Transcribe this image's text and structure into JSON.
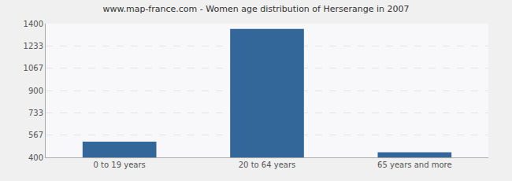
{
  "chart_data": {
    "type": "bar",
    "title": "www.map-france.com - Women age distribution of Herserange in 2007",
    "categories": [
      "0 to 19 years",
      "20 to 64 years",
      "65 years and more"
    ],
    "values": [
      517,
      1361,
      438
    ],
    "color": "#336699",
    "ylim": [
      400,
      1400
    ],
    "yticks": [
      400,
      567,
      733,
      900,
      1067,
      1233,
      1400
    ],
    "grid": true
  }
}
